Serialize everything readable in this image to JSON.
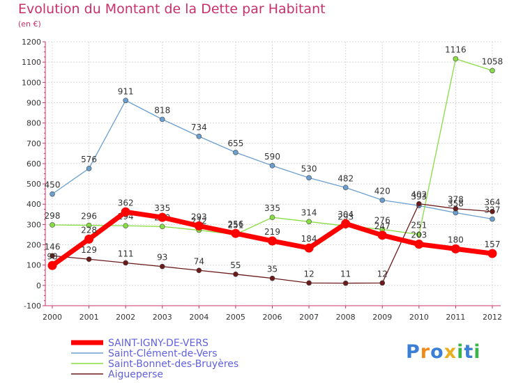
{
  "chart_data": {
    "type": "line",
    "title": "Evolution du Montant de la Dette par Habitant",
    "subtitle": "(en €)",
    "x": [
      "2000",
      "2001",
      "2002",
      "2003",
      "2004",
      "2005",
      "2006",
      "2007",
      "2008",
      "2009",
      "2010",
      "2011",
      "2012"
    ],
    "ylim": [
      -100,
      1200
    ],
    "yticks": [
      -100,
      0,
      100,
      200,
      300,
      400,
      500,
      600,
      700,
      800,
      900,
      1000,
      1100,
      1200
    ],
    "grid": true,
    "legend_position": "bottom-left",
    "series": [
      {
        "name": "SAINT-IGNY-DE-VERS",
        "color": "#ff0000",
        "values": [
          98,
          228,
          362,
          335,
          293,
          256,
          219,
          184,
          304,
          247,
          203,
          180,
          157
        ]
      },
      {
        "name": "Saint-Clément-de-Vers",
        "color": "#6a9fd0",
        "values": [
          450,
          576,
          911,
          818,
          734,
          655,
          590,
          530,
          482,
          420,
          393,
          358,
          327
        ]
      },
      {
        "name": "Saint-Bonnet-des-Bruyères",
        "color": "#88dd44",
        "values": [
          298,
          296,
          294,
          290,
          272,
          251,
          335,
          314,
          293,
          276,
          251,
          1116,
          1058
        ]
      },
      {
        "name": "Aigueperse",
        "color": "#6b1a1a",
        "values": [
          146,
          129,
          111,
          93,
          74,
          55,
          35,
          12,
          11,
          12,
          402,
          378,
          364
        ]
      }
    ]
  },
  "logo": {
    "text": "Proxiti",
    "letters": [
      "P",
      "r",
      "o",
      "x",
      "i",
      "t",
      "i"
    ],
    "colors": [
      "#3a7fd5",
      "#f08a1a",
      "#3a7fd5",
      "#e8b020",
      "#39b54a",
      "#3a7fd5",
      "#39b54a"
    ]
  }
}
